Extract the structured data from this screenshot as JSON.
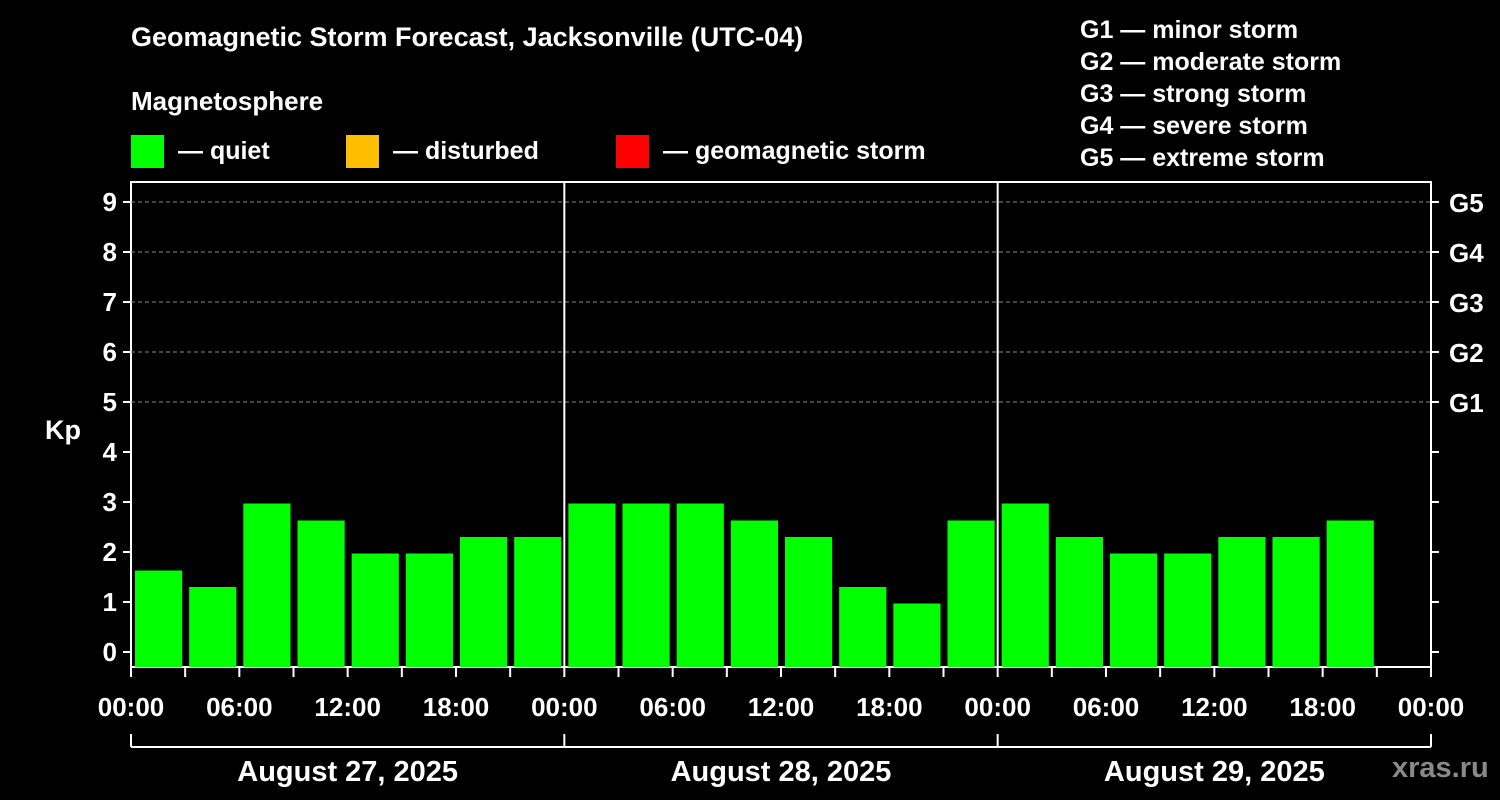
{
  "chart_data": {
    "type": "bar",
    "title": "Geomagnetic Storm Forecast, Jacksonville (UTC-04)",
    "ylabel": "Kp",
    "ylim": [
      0,
      9
    ],
    "yticks": [
      "0",
      "1",
      "2",
      "3",
      "4",
      "5",
      "6",
      "7",
      "8",
      "9"
    ],
    "right_ticks": [
      {
        "kp": 5,
        "label": "G1"
      },
      {
        "kp": 6,
        "label": "G2"
      },
      {
        "kp": 7,
        "label": "G3"
      },
      {
        "kp": 8,
        "label": "G4"
      },
      {
        "kp": 9,
        "label": "G5"
      }
    ],
    "xticks": [
      "00:00",
      "06:00",
      "12:00",
      "18:00",
      "00:00",
      "06:00",
      "12:00",
      "18:00",
      "00:00",
      "06:00",
      "12:00",
      "18:00",
      "00:00"
    ],
    "days": [
      "August 27, 2025",
      "August 28, 2025",
      "August 29, 2025"
    ],
    "hours_per_bar": 3,
    "total_hours": 72,
    "values": [
      1.33,
      1.0,
      2.67,
      2.33,
      1.67,
      1.67,
      2.0,
      2.0,
      2.67,
      2.67,
      2.67,
      2.33,
      2.0,
      1.0,
      0.67,
      2.33,
      2.67,
      2.0,
      1.67,
      1.67,
      2.0,
      2.0,
      2.33
    ],
    "bar_color": "#00ff00",
    "colors": {
      "quiet": "#00ff00",
      "disturbed": "#ffbf00",
      "storm": "#ff0000"
    }
  },
  "legend": {
    "magnetosphere": "Magnetosphere",
    "quiet": "— quiet",
    "disturbed": "— disturbed",
    "storm": "— geomagnetic storm"
  },
  "g_scale": [
    "G1 — minor storm",
    "G2 — moderate storm",
    "G3 — strong storm",
    "G4 — severe storm",
    "G5 — extreme storm"
  ],
  "watermark": "xras.ru"
}
